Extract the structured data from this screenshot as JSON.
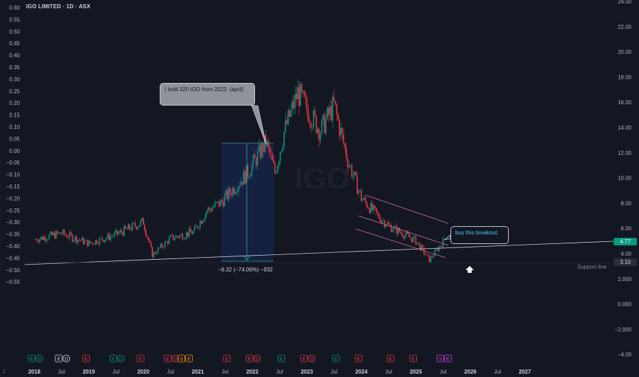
{
  "header": {
    "title": "IGO LIMITED · 1D · ASX"
  },
  "annotations": {
    "hold_note": "I hold 320 IGO from 2022. (april)",
    "breakout_note": "buy this breakout.",
    "measure": "−9.32 (−74.09%) −932",
    "support_label": "Support line",
    "z_label": "Z"
  },
  "price_tags": {
    "last": "4.77",
    "support": "3.10",
    "last_color": "#089981",
    "support_color": "#2a2e39"
  },
  "colors": {
    "background": "#131722",
    "up": "#089981",
    "down": "#f23645",
    "text": "#b2b5be",
    "line": "#d1d4dc",
    "channel": "#e06fa5"
  },
  "chart_data": {
    "type": "candlestick",
    "title": "IGO LIMITED · 1D · ASX",
    "x_ticks": [
      "2018",
      "Jul",
      "2019",
      "Jul",
      "2020",
      "Jul",
      "2021",
      "Jul",
      "2022",
      "Jul",
      "2023",
      "Jul",
      "2024",
      "Jul",
      "2025",
      "Jul",
      "2026",
      "Jul",
      "2027"
    ],
    "left_axis_ticks": [
      "0.60",
      "0.55",
      "0.50",
      "0.45",
      "0.40",
      "0.35",
      "0.30",
      "0.25",
      "0.20",
      "0.15",
      "0.10",
      "0.05",
      "0.00",
      "−0.05",
      "−0.10",
      "−0.15",
      "−0.20",
      "−0.25",
      "−0.30",
      "−0.35",
      "−0.40",
      "−0.45",
      "−0.50",
      "−0.55"
    ],
    "right_axis_ticks": [
      "24.00",
      "22.00",
      "20.00",
      "18.00",
      "16.00",
      "14.00",
      "12.00",
      "10.00",
      "8.00",
      "6.00",
      "4.00",
      "2.000",
      "0.000",
      "−2.000",
      "−4.00"
    ],
    "approx_price_path": [
      {
        "date": "2018-01",
        "price": 4.9
      },
      {
        "date": "2018-07",
        "price": 5.4
      },
      {
        "date": "2019-01",
        "price": 4.6
      },
      {
        "date": "2019-07",
        "price": 5.3
      },
      {
        "date": "2020-01",
        "price": 6.3
      },
      {
        "date": "2020-03",
        "price": 3.7
      },
      {
        "date": "2020-07",
        "price": 5.0
      },
      {
        "date": "2020-12",
        "price": 5.5
      },
      {
        "date": "2021-03",
        "price": 7.2
      },
      {
        "date": "2021-06",
        "price": 7.8
      },
      {
        "date": "2021-09",
        "price": 9.0
      },
      {
        "date": "2021-12",
        "price": 10.2
      },
      {
        "date": "2022-04",
        "price": 12.6
      },
      {
        "date": "2022-06",
        "price": 10.2
      },
      {
        "date": "2022-08",
        "price": 13.4
      },
      {
        "date": "2022-11",
        "price": 16.5
      },
      {
        "date": "2023-01",
        "price": 15.2
      },
      {
        "date": "2023-04",
        "price": 13.5
      },
      {
        "date": "2023-07",
        "price": 15.5
      },
      {
        "date": "2023-10",
        "price": 11.2
      },
      {
        "date": "2024-01",
        "price": 8.2
      },
      {
        "date": "2024-04",
        "price": 7.0
      },
      {
        "date": "2024-07",
        "price": 6.0
      },
      {
        "date": "2024-10",
        "price": 5.4
      },
      {
        "date": "2025-01",
        "price": 4.8
      },
      {
        "date": "2025-04",
        "price": 3.3
      },
      {
        "date": "2025-07",
        "price": 4.77
      }
    ],
    "last_price": 4.77,
    "support_price": 3.1,
    "measure_change": {
      "value": -9.32,
      "percent": -74.09
    },
    "events": [
      {
        "date": "2018-01",
        "labels": [
          "E",
          "D"
        ],
        "color": "#089981"
      },
      {
        "date": "2018-07",
        "labels": [
          "E",
          "D"
        ],
        "color": "#d1d4dc"
      },
      {
        "date": "2019-01",
        "labels": [
          "E"
        ],
        "color": "#f23645"
      },
      {
        "date": "2019-07",
        "labels": [
          "E",
          "D"
        ],
        "color": "#089981"
      },
      {
        "date": "2020-01",
        "labels": [
          "E"
        ],
        "color": "#f23645"
      },
      {
        "date": "2020-07",
        "labels": [
          "E",
          "D"
        ],
        "color": "#f23645"
      },
      {
        "date": "2020-10",
        "labels": [
          "S",
          "E"
        ],
        "color": "#ff9800"
      },
      {
        "date": "2021-08",
        "labels": [
          "E"
        ],
        "color": "#f23645"
      },
      {
        "date": "2022-01",
        "labels": [
          "E",
          "D"
        ],
        "color": "#f23645"
      },
      {
        "date": "2022-08",
        "labels": [
          "E"
        ],
        "color": "#089981"
      },
      {
        "date": "2023-01",
        "labels": [
          "E",
          "D"
        ],
        "color": "#f23645"
      },
      {
        "date": "2023-08",
        "labels": [
          "E"
        ],
        "color": "#089981"
      },
      {
        "date": "2024-01",
        "labels": [
          "E"
        ],
        "color": "#f23645"
      },
      {
        "date": "2024-08",
        "labels": [
          "E"
        ],
        "color": "#f23645"
      },
      {
        "date": "2025-01",
        "labels": [
          "E"
        ],
        "color": "#f23645"
      },
      {
        "date": "2025-07",
        "labels": [
          "S",
          "E"
        ],
        "color": "#e040fb"
      }
    ]
  }
}
